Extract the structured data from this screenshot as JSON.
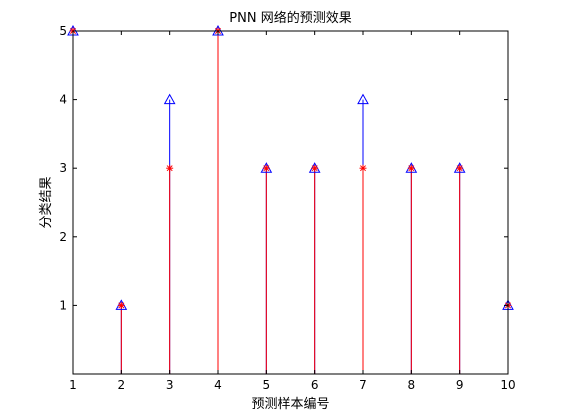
{
  "chart_data": {
    "type": "stem",
    "title": "PNN 网络的预测效果",
    "xlabel": "预测样本编号",
    "ylabel": "分类结果",
    "xlim": [
      1,
      10
    ],
    "ylim": [
      0,
      5
    ],
    "xticks": [
      1,
      2,
      3,
      4,
      5,
      6,
      7,
      8,
      9,
      10
    ],
    "yticks": [
      1,
      2,
      3,
      4,
      5
    ],
    "x": [
      1,
      2,
      3,
      4,
      5,
      6,
      7,
      8,
      9,
      10
    ],
    "series": [
      {
        "values": [
          5,
          1,
          4,
          5,
          3,
          3,
          4,
          3,
          3,
          1
        ],
        "color": "#0000ff",
        "marker": "triangle"
      },
      {
        "values": [
          5,
          1,
          3,
          5,
          3,
          3,
          3,
          3,
          3,
          1
        ],
        "color": "#ff0000",
        "marker": "star"
      }
    ],
    "grid": false,
    "box": true
  }
}
